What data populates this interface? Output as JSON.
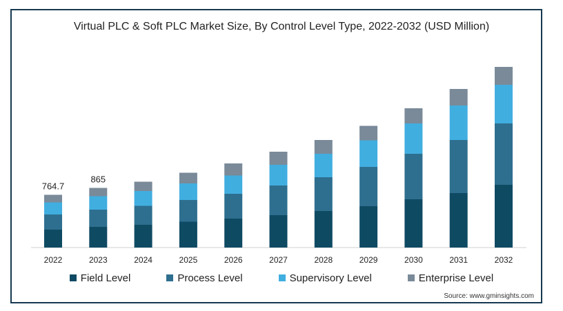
{
  "chart_data": {
    "type": "bar",
    "stacked": true,
    "title": "Virtual PLC & Soft PLC Market Size, By Control Level Type, 2022-2032 (USD Million)",
    "categories": [
      "2022",
      "2023",
      "2024",
      "2025",
      "2026",
      "2027",
      "2028",
      "2029",
      "2030",
      "2031",
      "2032"
    ],
    "series": [
      {
        "name": "Field Level",
        "color": "#0f4a63",
        "values": [
          260,
          300,
          330,
          375,
          420,
          470,
          530,
          600,
          700,
          790,
          910
        ]
      },
      {
        "name": "Process Level",
        "color": "#2e6f8f",
        "values": [
          220,
          250,
          275,
          315,
          360,
          430,
          490,
          570,
          660,
          770,
          890
        ]
      },
      {
        "name": "Supervisory Level",
        "color": "#41aee0",
        "values": [
          175,
          195,
          215,
          240,
          265,
          300,
          340,
          385,
          440,
          500,
          560
        ]
      },
      {
        "name": "Enterprise Level",
        "color": "#7a8a99",
        "values": [
          110,
          120,
          135,
          155,
          175,
          190,
          200,
          210,
          220,
          240,
          260
        ]
      }
    ],
    "data_labels": [
      {
        "category": "2022",
        "label": "764.7"
      },
      {
        "category": "2023",
        "label": "865"
      }
    ],
    "ylim": [
      0,
      2700
    ],
    "grid": false,
    "legend_position": "bottom"
  },
  "source": "Source: www.gminsights.com"
}
